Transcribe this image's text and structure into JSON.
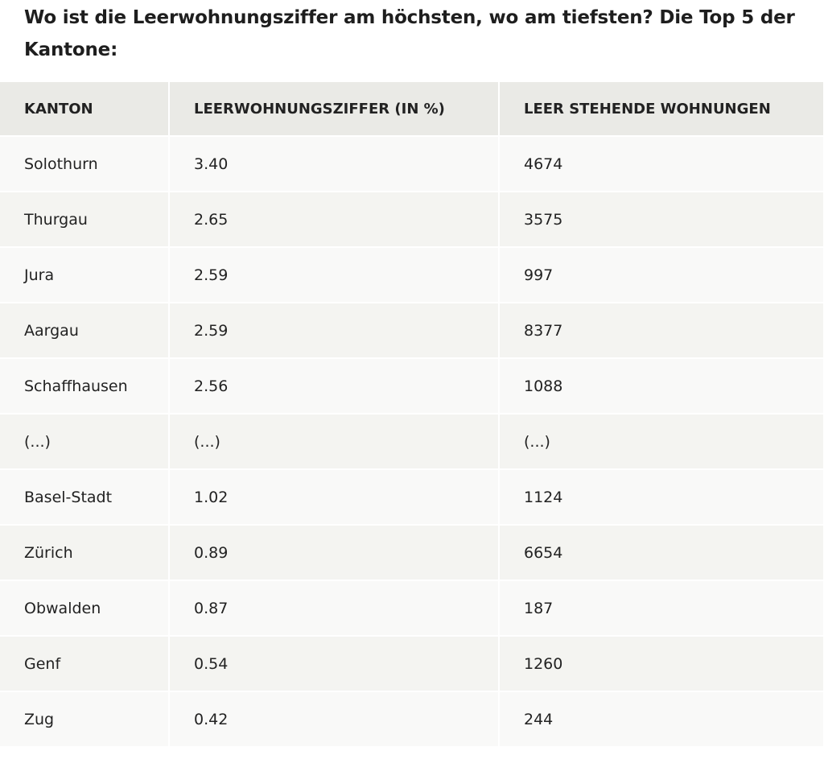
{
  "title": "Wo ist die Leerwohnungsziffer am höchsten, wo am tiefsten? Die Top 5 der Kantone:",
  "table": {
    "headers": [
      "KANTON",
      "LEERWOHNUNGSZIFFER (IN %)",
      "LEER STEHENDE WOHNUNGEN"
    ],
    "rows": [
      [
        "Solothurn",
        "3.40",
        "4674"
      ],
      [
        "Thurgau",
        "2.65",
        "3575"
      ],
      [
        "Jura",
        "2.59",
        "997"
      ],
      [
        "Aargau",
        "2.59",
        "8377"
      ],
      [
        "Schaffhausen",
        "2.56",
        "1088"
      ],
      [
        "(...)",
        "(...)",
        "(...)"
      ],
      [
        "Basel-Stadt",
        "1.02",
        "1124"
      ],
      [
        "Zürich",
        "0.89",
        "6654"
      ],
      [
        "Obwalden",
        "0.87",
        "187"
      ],
      [
        "Genf",
        "0.54",
        "1260"
      ],
      [
        "Zug",
        "0.42",
        "244"
      ]
    ]
  }
}
